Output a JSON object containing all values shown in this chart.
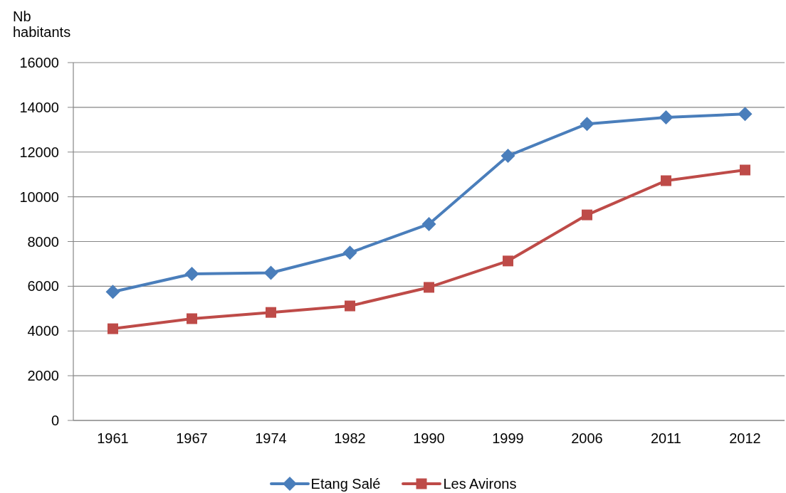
{
  "chart_data": {
    "type": "line",
    "ylabel": "Nb habitants",
    "categories": [
      "1961",
      "1967",
      "1974",
      "1982",
      "1990",
      "1999",
      "2006",
      "2011",
      "2012"
    ],
    "series": [
      {
        "name": "Etang Salé",
        "color": "#4a7ebb",
        "marker": "diamond",
        "values": [
          5750,
          6550,
          6600,
          7500,
          8780,
          11830,
          13260,
          13550,
          13700
        ]
      },
      {
        "name": "Les Avirons",
        "color": "#be4b48",
        "marker": "square",
        "values": [
          4100,
          4550,
          4830,
          5120,
          5950,
          7130,
          9190,
          10720,
          11200
        ]
      }
    ],
    "ylim": [
      0,
      16000
    ],
    "yticks": [
      0,
      2000,
      4000,
      6000,
      8000,
      10000,
      12000,
      14000,
      16000
    ],
    "grid": "y",
    "legend": "bottom",
    "line_style": "solid"
  }
}
